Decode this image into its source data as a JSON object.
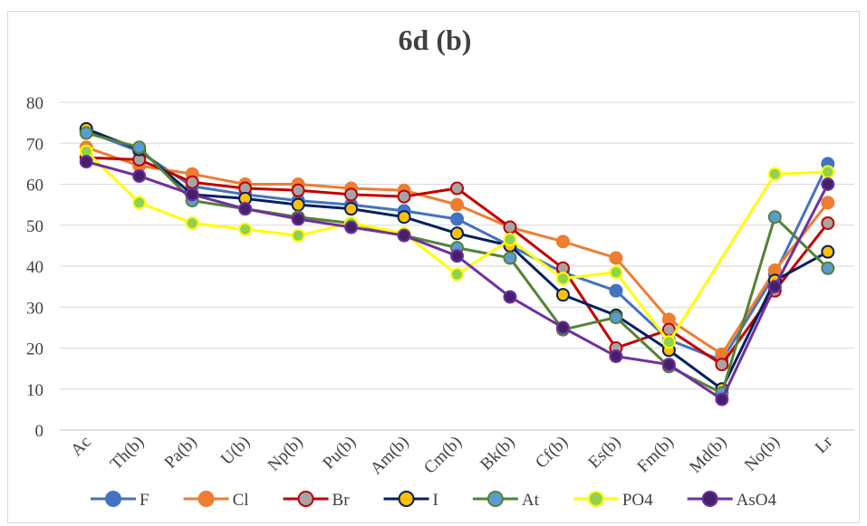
{
  "chart_data": {
    "type": "line",
    "title": "6d (b)",
    "categories": [
      "Ac",
      "Th(b)",
      "Pa(b)",
      "U(b)",
      "Np(b)",
      "Pu(b)",
      "Am(b)",
      "Cm(b)",
      "Bk(b)",
      "Cf(b)",
      "Es(b)",
      "Fm(b)",
      "Md(b)",
      "No(b)",
      "Lr"
    ],
    "ylim": [
      0,
      80
    ],
    "yticks": [
      0,
      10,
      20,
      30,
      40,
      50,
      60,
      70,
      80
    ],
    "grid": true,
    "legend": "bottom",
    "connect_gaps": true,
    "series": [
      {
        "name": "F",
        "color": "#4472c4",
        "marker_fill": "#4472c4",
        "values": [
          73,
          68,
          59.5,
          57.5,
          56,
          55,
          53.5,
          51.5,
          45,
          38.5,
          34,
          22,
          17,
          38,
          65
        ]
      },
      {
        "name": "Cl",
        "color": "#ed7d31",
        "marker_fill": "#ed7d31",
        "values": [
          69,
          64.5,
          62.5,
          60,
          60,
          59,
          58.5,
          55,
          49.5,
          46,
          42,
          27,
          18.5,
          39,
          55.5
        ]
      },
      {
        "name": "Br",
        "color": "#c00000",
        "marker_fill": "#a5a5a5",
        "values": [
          66.5,
          66,
          60.5,
          59,
          58.5,
          57.5,
          57,
          59,
          49.5,
          39.5,
          20,
          24.5,
          16,
          34,
          50.5
        ]
      },
      {
        "name": "I",
        "color": "#002060",
        "marker_fill": "#ffc000",
        "values": [
          73.5,
          68.5,
          57.5,
          56.5,
          55,
          54,
          52,
          48,
          45,
          33,
          28,
          19.5,
          10,
          36.5,
          43.5
        ]
      },
      {
        "name": "At",
        "color": "#548235",
        "marker_fill": "#5b9bd5",
        "values": [
          72.5,
          69,
          56,
          54,
          52,
          50.5,
          47.5,
          44.5,
          42,
          24.5,
          27.5,
          15.5,
          9,
          52,
          39.5
        ]
      },
      {
        "name": "PO4",
        "color": "#ffff00",
        "marker_fill": "#92d050",
        "values": [
          68,
          55.5,
          50.5,
          49,
          47.5,
          50.5,
          48,
          38,
          46.5,
          37,
          38.5,
          21.5,
          null,
          62.5,
          63
        ]
      },
      {
        "name": "AsO4",
        "color": "#7030a0",
        "marker_fill": "#44206a",
        "values": [
          65.5,
          62,
          57.5,
          54,
          51.5,
          49.5,
          47.5,
          42.5,
          32.5,
          25,
          18,
          16,
          7.5,
          35,
          60
        ]
      }
    ]
  }
}
